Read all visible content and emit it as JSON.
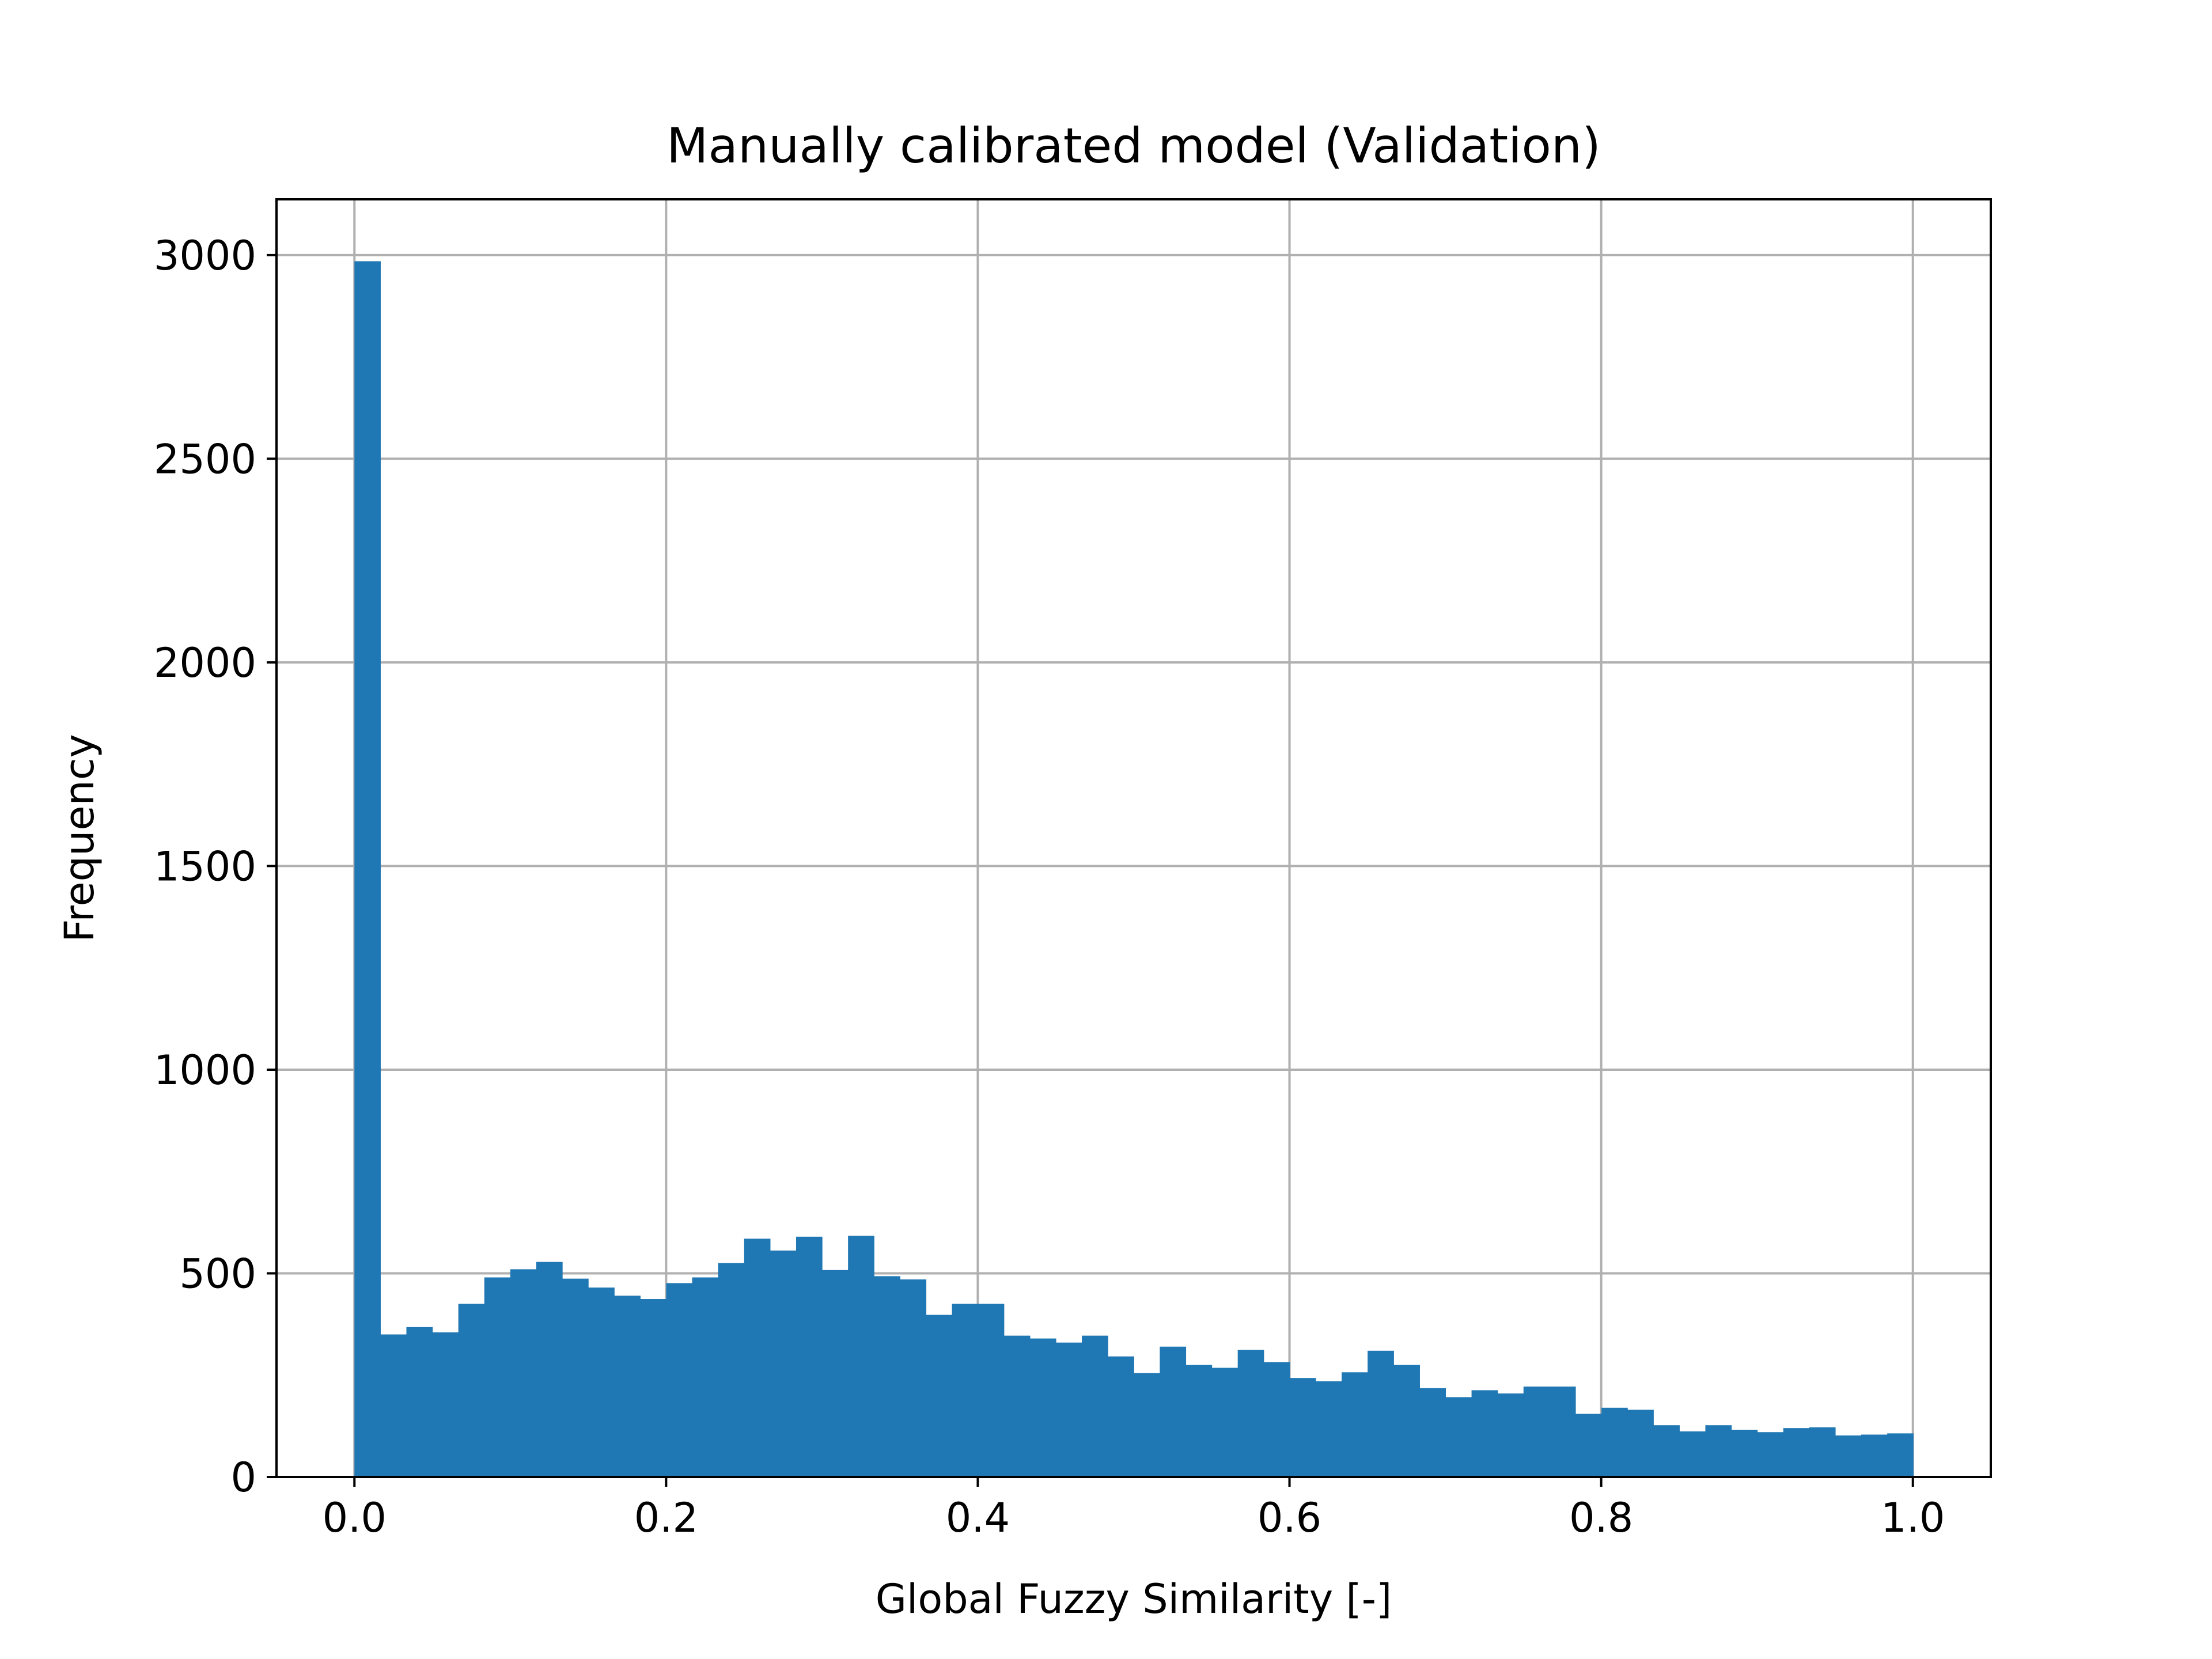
{
  "chart_data": {
    "type": "bar",
    "title": "Manually calibrated model (Validation)",
    "xlabel": "Global Fuzzy Similarity [-]",
    "ylabel": "Frequency",
    "xlim": [
      -0.05,
      1.05
    ],
    "ylim": [
      0,
      3137
    ],
    "xticks": [
      {
        "value": 0.0,
        "label": "0.0"
      },
      {
        "value": 0.2,
        "label": "0.2"
      },
      {
        "value": 0.4,
        "label": "0.4"
      },
      {
        "value": 0.6,
        "label": "0.6"
      },
      {
        "value": 0.8,
        "label": "0.8"
      },
      {
        "value": 1.0,
        "label": "1.0"
      }
    ],
    "yticks": [
      {
        "value": 0,
        "label": "0"
      },
      {
        "value": 500,
        "label": "500"
      },
      {
        "value": 1000,
        "label": "1000"
      },
      {
        "value": 1500,
        "label": "1500"
      },
      {
        "value": 2000,
        "label": "2000"
      },
      {
        "value": 2500,
        "label": "2500"
      },
      {
        "value": 3000,
        "label": "3000"
      }
    ],
    "grid": true,
    "bar_color": "#1f77b4",
    "bin_start": 0.0,
    "bin_width": 0.01667,
    "values": [
      2985,
      350,
      368,
      355,
      425,
      490,
      510,
      528,
      487,
      465,
      445,
      437,
      476,
      490,
      525,
      585,
      556,
      590,
      508,
      592,
      493,
      485,
      398,
      425,
      425,
      347,
      340,
      330,
      347,
      296,
      255,
      320,
      275,
      268,
      312,
      282,
      243,
      235,
      257,
      310,
      275,
      218,
      196,
      213,
      205,
      222,
      222,
      155,
      170,
      165,
      127,
      112,
      127,
      116,
      110,
      120,
      122,
      102,
      104,
      107
    ]
  }
}
